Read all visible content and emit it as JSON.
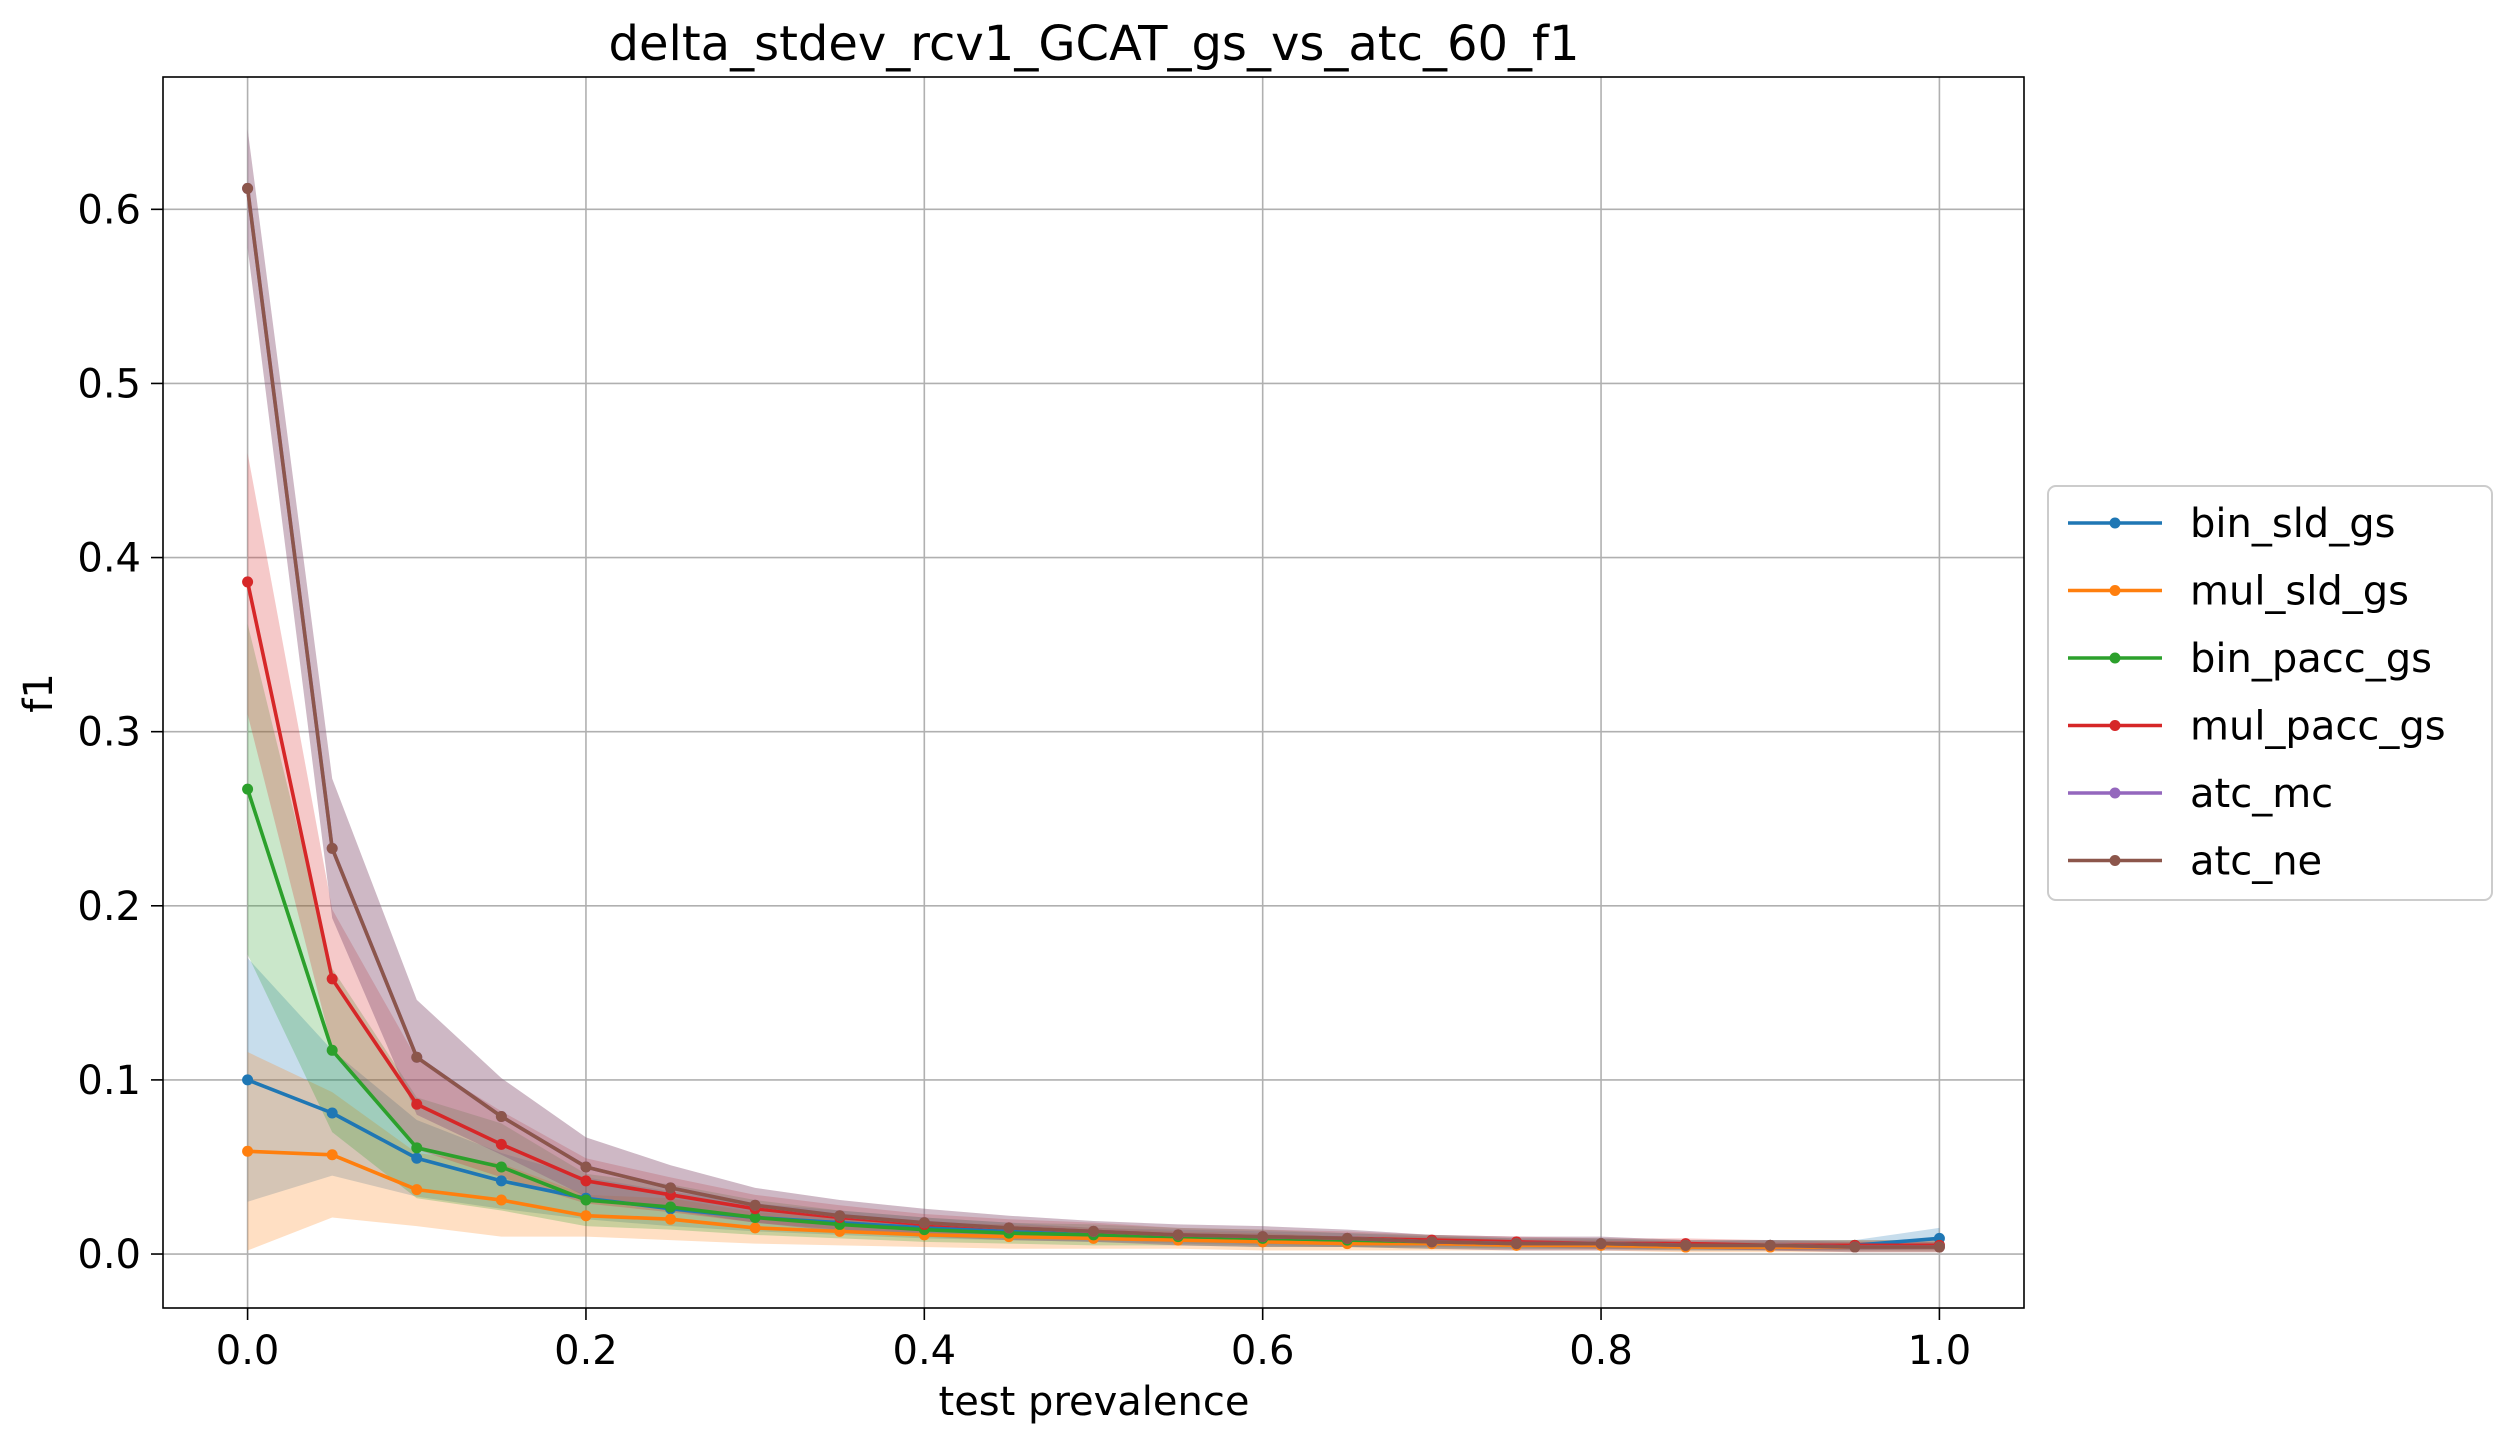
{
  "chart_data": {
    "type": "line",
    "title": "delta_stdev_rcv1_GCAT_gs_vs_atc_60_f1",
    "xlabel": "test prevalence",
    "ylabel": "f1",
    "xlim": [
      -0.05,
      1.05
    ],
    "ylim": [
      -0.031,
      0.676
    ],
    "xticks": [
      0.0,
      0.2,
      0.4,
      0.6,
      0.8,
      1.0
    ],
    "xtick_labels": [
      "0.0",
      "0.2",
      "0.4",
      "0.6",
      "0.8",
      "1.0"
    ],
    "yticks": [
      0.0,
      0.1,
      0.2,
      0.3,
      0.4,
      0.5,
      0.6
    ],
    "ytick_labels": [
      "0.0",
      "0.1",
      "0.2",
      "0.3",
      "0.4",
      "0.5",
      "0.6"
    ],
    "grid": true,
    "legend_position": "outside right",
    "x": [
      0.0,
      0.05,
      0.1,
      0.15,
      0.2,
      0.25,
      0.3,
      0.35,
      0.4,
      0.45,
      0.5,
      0.55,
      0.6,
      0.65,
      0.7,
      0.75,
      0.8,
      0.85,
      0.9,
      0.95,
      1.0
    ],
    "series": [
      {
        "name": "bin_sld_gs",
        "color": "#1f77b4",
        "values": [
          0.1,
          0.081,
          0.055,
          0.042,
          0.032,
          0.026,
          0.021,
          0.018,
          0.015,
          0.013,
          0.011,
          0.01,
          0.009,
          0.008,
          0.007,
          0.006,
          0.006,
          0.005,
          0.005,
          0.005,
          0.009
        ],
        "band_lower": [
          0.03,
          0.045,
          0.033,
          0.026,
          0.02,
          0.016,
          0.013,
          0.011,
          0.009,
          0.008,
          0.007,
          0.006,
          0.005,
          0.004,
          0.004,
          0.003,
          0.003,
          0.003,
          0.002,
          0.002,
          0.003
        ],
        "band_upper": [
          0.17,
          0.117,
          0.077,
          0.058,
          0.044,
          0.036,
          0.029,
          0.025,
          0.021,
          0.018,
          0.015,
          0.014,
          0.013,
          0.012,
          0.01,
          0.009,
          0.009,
          0.007,
          0.008,
          0.008,
          0.015
        ]
      },
      {
        "name": "mul_sld_gs",
        "color": "#ff7f0e",
        "values": [
          0.059,
          0.057,
          0.037,
          0.031,
          0.022,
          0.02,
          0.015,
          0.013,
          0.011,
          0.01,
          0.009,
          0.008,
          0.007,
          0.006,
          0.006,
          0.005,
          0.005,
          0.004,
          0.004,
          0.004,
          0.004
        ],
        "band_lower": [
          0.002,
          0.021,
          0.016,
          0.01,
          0.01,
          0.008,
          0.006,
          0.005,
          0.004,
          0.003,
          0.003,
          0.003,
          0.002,
          0.002,
          0.002,
          0.002,
          0.002,
          0.001,
          0.001,
          0.001,
          0.001
        ],
        "band_upper": [
          0.116,
          0.093,
          0.058,
          0.052,
          0.034,
          0.032,
          0.024,
          0.021,
          0.018,
          0.017,
          0.015,
          0.013,
          0.012,
          0.01,
          0.01,
          0.008,
          0.008,
          0.007,
          0.007,
          0.007,
          0.007
        ]
      },
      {
        "name": "bin_pacc_gs",
        "color": "#2ca02c",
        "values": [
          0.267,
          0.117,
          0.061,
          0.05,
          0.031,
          0.027,
          0.021,
          0.017,
          0.014,
          0.012,
          0.011,
          0.01,
          0.009,
          0.008,
          0.007,
          0.006,
          0.006,
          0.005,
          0.005,
          0.005,
          0.005
        ],
        "band_lower": [
          0.172,
          0.07,
          0.032,
          0.025,
          0.016,
          0.014,
          0.011,
          0.009,
          0.007,
          0.006,
          0.005,
          0.005,
          0.004,
          0.004,
          0.003,
          0.003,
          0.003,
          0.002,
          0.002,
          0.002,
          0.002
        ],
        "band_upper": [
          0.362,
          0.164,
          0.09,
          0.075,
          0.046,
          0.04,
          0.031,
          0.025,
          0.021,
          0.018,
          0.017,
          0.015,
          0.014,
          0.012,
          0.011,
          0.009,
          0.009,
          0.008,
          0.008,
          0.008,
          0.008
        ]
      },
      {
        "name": "mul_pacc_gs",
        "color": "#d62728",
        "values": [
          0.386,
          0.158,
          0.086,
          0.063,
          0.042,
          0.034,
          0.026,
          0.021,
          0.017,
          0.015,
          0.013,
          0.011,
          0.01,
          0.009,
          0.008,
          0.007,
          0.006,
          0.006,
          0.005,
          0.005,
          0.005
        ],
        "band_lower": [
          0.31,
          0.118,
          0.06,
          0.044,
          0.029,
          0.024,
          0.018,
          0.014,
          0.011,
          0.01,
          0.008,
          0.007,
          0.006,
          0.005,
          0.005,
          0.004,
          0.003,
          0.003,
          0.002,
          0.002,
          0.002
        ],
        "band_upper": [
          0.46,
          0.198,
          0.112,
          0.082,
          0.055,
          0.044,
          0.034,
          0.028,
          0.023,
          0.02,
          0.018,
          0.015,
          0.014,
          0.013,
          0.011,
          0.01,
          0.009,
          0.009,
          0.008,
          0.008,
          0.008
        ]
      },
      {
        "name": "atc_mc",
        "color": "#9467bd",
        "values": [
          0.612,
          0.233,
          0.113,
          0.079,
          0.05,
          0.038,
          0.028,
          0.022,
          0.018,
          0.015,
          0.013,
          0.011,
          0.01,
          0.009,
          0.007,
          0.006,
          0.006,
          0.005,
          0.005,
          0.004,
          0.004
        ],
        "band_lower": [
          0.578,
          0.193,
          0.08,
          0.057,
          0.033,
          0.025,
          0.018,
          0.013,
          0.01,
          0.008,
          0.007,
          0.005,
          0.004,
          0.004,
          0.003,
          0.002,
          0.002,
          0.002,
          0.002,
          0.001,
          0.001
        ],
        "band_upper": [
          0.646,
          0.273,
          0.146,
          0.101,
          0.067,
          0.051,
          0.038,
          0.031,
          0.026,
          0.022,
          0.019,
          0.017,
          0.016,
          0.014,
          0.011,
          0.01,
          0.01,
          0.008,
          0.008,
          0.007,
          0.007
        ]
      },
      {
        "name": "atc_ne",
        "color": "#8c564b",
        "values": [
          0.612,
          0.233,
          0.113,
          0.079,
          0.05,
          0.038,
          0.028,
          0.022,
          0.018,
          0.015,
          0.013,
          0.011,
          0.01,
          0.009,
          0.007,
          0.006,
          0.006,
          0.005,
          0.005,
          0.004,
          0.004
        ],
        "band_lower": [
          0.578,
          0.193,
          0.08,
          0.057,
          0.033,
          0.025,
          0.018,
          0.013,
          0.01,
          0.008,
          0.007,
          0.005,
          0.004,
          0.004,
          0.003,
          0.002,
          0.002,
          0.002,
          0.002,
          0.001,
          0.001
        ],
        "band_upper": [
          0.646,
          0.273,
          0.146,
          0.101,
          0.067,
          0.051,
          0.038,
          0.031,
          0.026,
          0.022,
          0.019,
          0.017,
          0.016,
          0.014,
          0.011,
          0.01,
          0.01,
          0.008,
          0.008,
          0.007,
          0.007
        ]
      }
    ]
  }
}
